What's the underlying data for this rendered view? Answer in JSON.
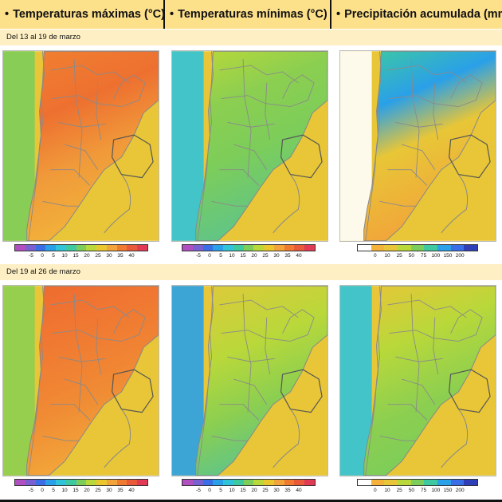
{
  "headers": [
    {
      "bullet": "•",
      "title": "Temperaturas máximas (°C)"
    },
    {
      "bullet": "•",
      "title": "Temperaturas mínimas (°C)"
    },
    {
      "bullet": "•",
      "title": "Precipitación acumulada (mm)"
    }
  ],
  "periods": [
    "Del 13 al 19 de marzo",
    "Del 19 al 26 de marzo"
  ],
  "temp_scale": {
    "ticks": [
      "-5",
      "0",
      "5",
      "10",
      "15",
      "20",
      "25",
      "30",
      "35",
      "40"
    ],
    "colors": [
      "#b04fc0",
      "#7a5fd0",
      "#3a6ee6",
      "#2aa0e8",
      "#31c3d9",
      "#3ec9a0",
      "#7ccd5a",
      "#b9d83a",
      "#e9c72d",
      "#f2a33a",
      "#f07a30",
      "#e85a3a",
      "#e03a55"
    ]
  },
  "precip_scale": {
    "ticks": [
      "0",
      "10",
      "25",
      "50",
      "75",
      "100",
      "150",
      "200"
    ],
    "colors": [
      "#ffffff",
      "#f4b23a",
      "#e8c637",
      "#b9d83a",
      "#7ccd5a",
      "#3ec9a0",
      "#2aa0e8",
      "#3a6ee6",
      "#2f3fb8"
    ]
  },
  "icons": {
    "bullet": "bullet-dot"
  }
}
